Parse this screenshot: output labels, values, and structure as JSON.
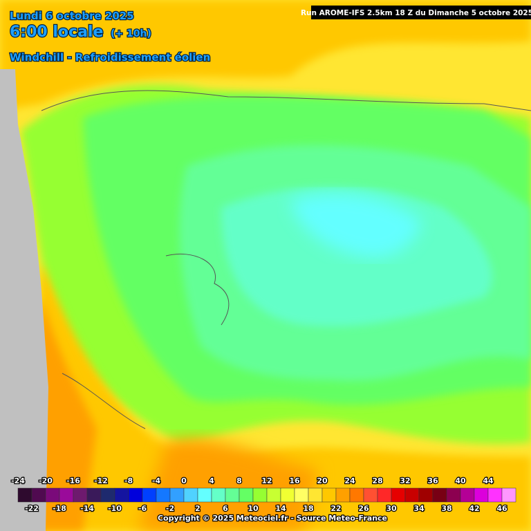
{
  "header": {
    "date": "Lundi 6 octobre 2025",
    "time": "6:00 locale",
    "lead": "(+ 10h)",
    "parameter": "Windchill - Refroidissement éolien",
    "run": "Run AROME-IFS 2.5km 18 Z du Dimanche 5 octobre 2025"
  },
  "legend": {
    "labels": [
      -24,
      -22,
      -20,
      -18,
      -16,
      -14,
      -12,
      -10,
      -8,
      -6,
      -4,
      -2,
      0,
      2,
      4,
      6,
      8,
      10,
      12,
      14,
      16,
      18,
      20,
      22,
      24,
      26,
      28,
      30,
      32,
      34,
      36,
      38,
      40,
      42,
      44,
      46
    ],
    "colors": [
      "#2e0a2e",
      "#500a50",
      "#7a0a7a",
      "#9a0a9a",
      "#6e1a6e",
      "#3a1a5a",
      "#1e2a6e",
      "#1414a0",
      "#0000dc",
      "#0040ff",
      "#1478ff",
      "#32a0ff",
      "#50d2ff",
      "#64ffff",
      "#64ffc8",
      "#64ff96",
      "#64ff64",
      "#96ff32",
      "#c8ff32",
      "#f0ff32",
      "#ffff64",
      "#ffe632",
      "#ffc800",
      "#ffa000",
      "#ff7800",
      "#ff5032",
      "#ff2828",
      "#e60000",
      "#c80000",
      "#a00000",
      "#780014",
      "#8c0050",
      "#b40096",
      "#dc00dc",
      "#ff32ff",
      "#ff96ff"
    ]
  },
  "footer": {
    "copyright": "Copyright © 2025 Meteociel.fr - Source Meteo-France"
  }
}
